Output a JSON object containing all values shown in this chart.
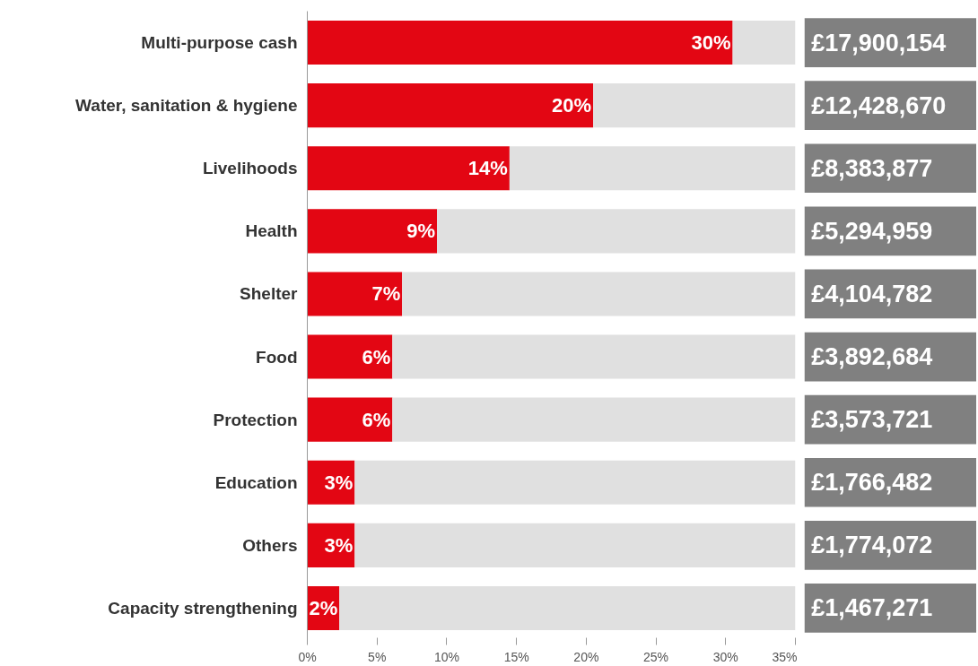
{
  "chart_data": {
    "type": "bar",
    "orientation": "horizontal",
    "stacked": true,
    "categories": [
      "Multi-purpose cash",
      "Water, sanitation & hygiene",
      "Livelihoods",
      "Health",
      "Shelter",
      "Food",
      "Protection",
      "Education",
      "Others",
      "Capacity strengthening"
    ],
    "series": [
      {
        "color": "#e30613",
        "values": [
          30.5,
          20.5,
          14.5,
          9.3,
          6.8,
          6.1,
          6.1,
          3.4,
          3.4,
          2.3
        ],
        "value_labels": [
          "30%",
          "20%",
          "14%",
          "9%",
          "7%",
          "6%",
          "6%",
          "3%",
          "3%",
          "2%"
        ]
      },
      {
        "color": "#e0e0e0",
        "values": [
          4.5,
          14.5,
          20.5,
          25.7,
          28.2,
          28.9,
          28.9,
          31.6,
          31.6,
          32.7
        ]
      }
    ],
    "annotations": [
      "£17,900,154",
      "£12,428,670",
      "£8,383,877",
      "£5,294,959",
      "£4,104,782",
      "£3,892,684",
      "£3,573,721",
      "£1,766,482",
      "£1,774,072",
      "£1,467,271"
    ],
    "xlim": [
      0,
      35
    ],
    "xticks": [
      {
        "value": 0,
        "label": "0%"
      },
      {
        "value": 5,
        "label": "5%"
      },
      {
        "value": 10,
        "label": "10%"
      },
      {
        "value": 15,
        "label": "15%"
      },
      {
        "value": 20,
        "label": "20%"
      },
      {
        "value": 25,
        "label": "25%"
      },
      {
        "value": 30,
        "label": "30%"
      },
      {
        "value": 35,
        "label": "35%"
      }
    ],
    "grid": false
  }
}
